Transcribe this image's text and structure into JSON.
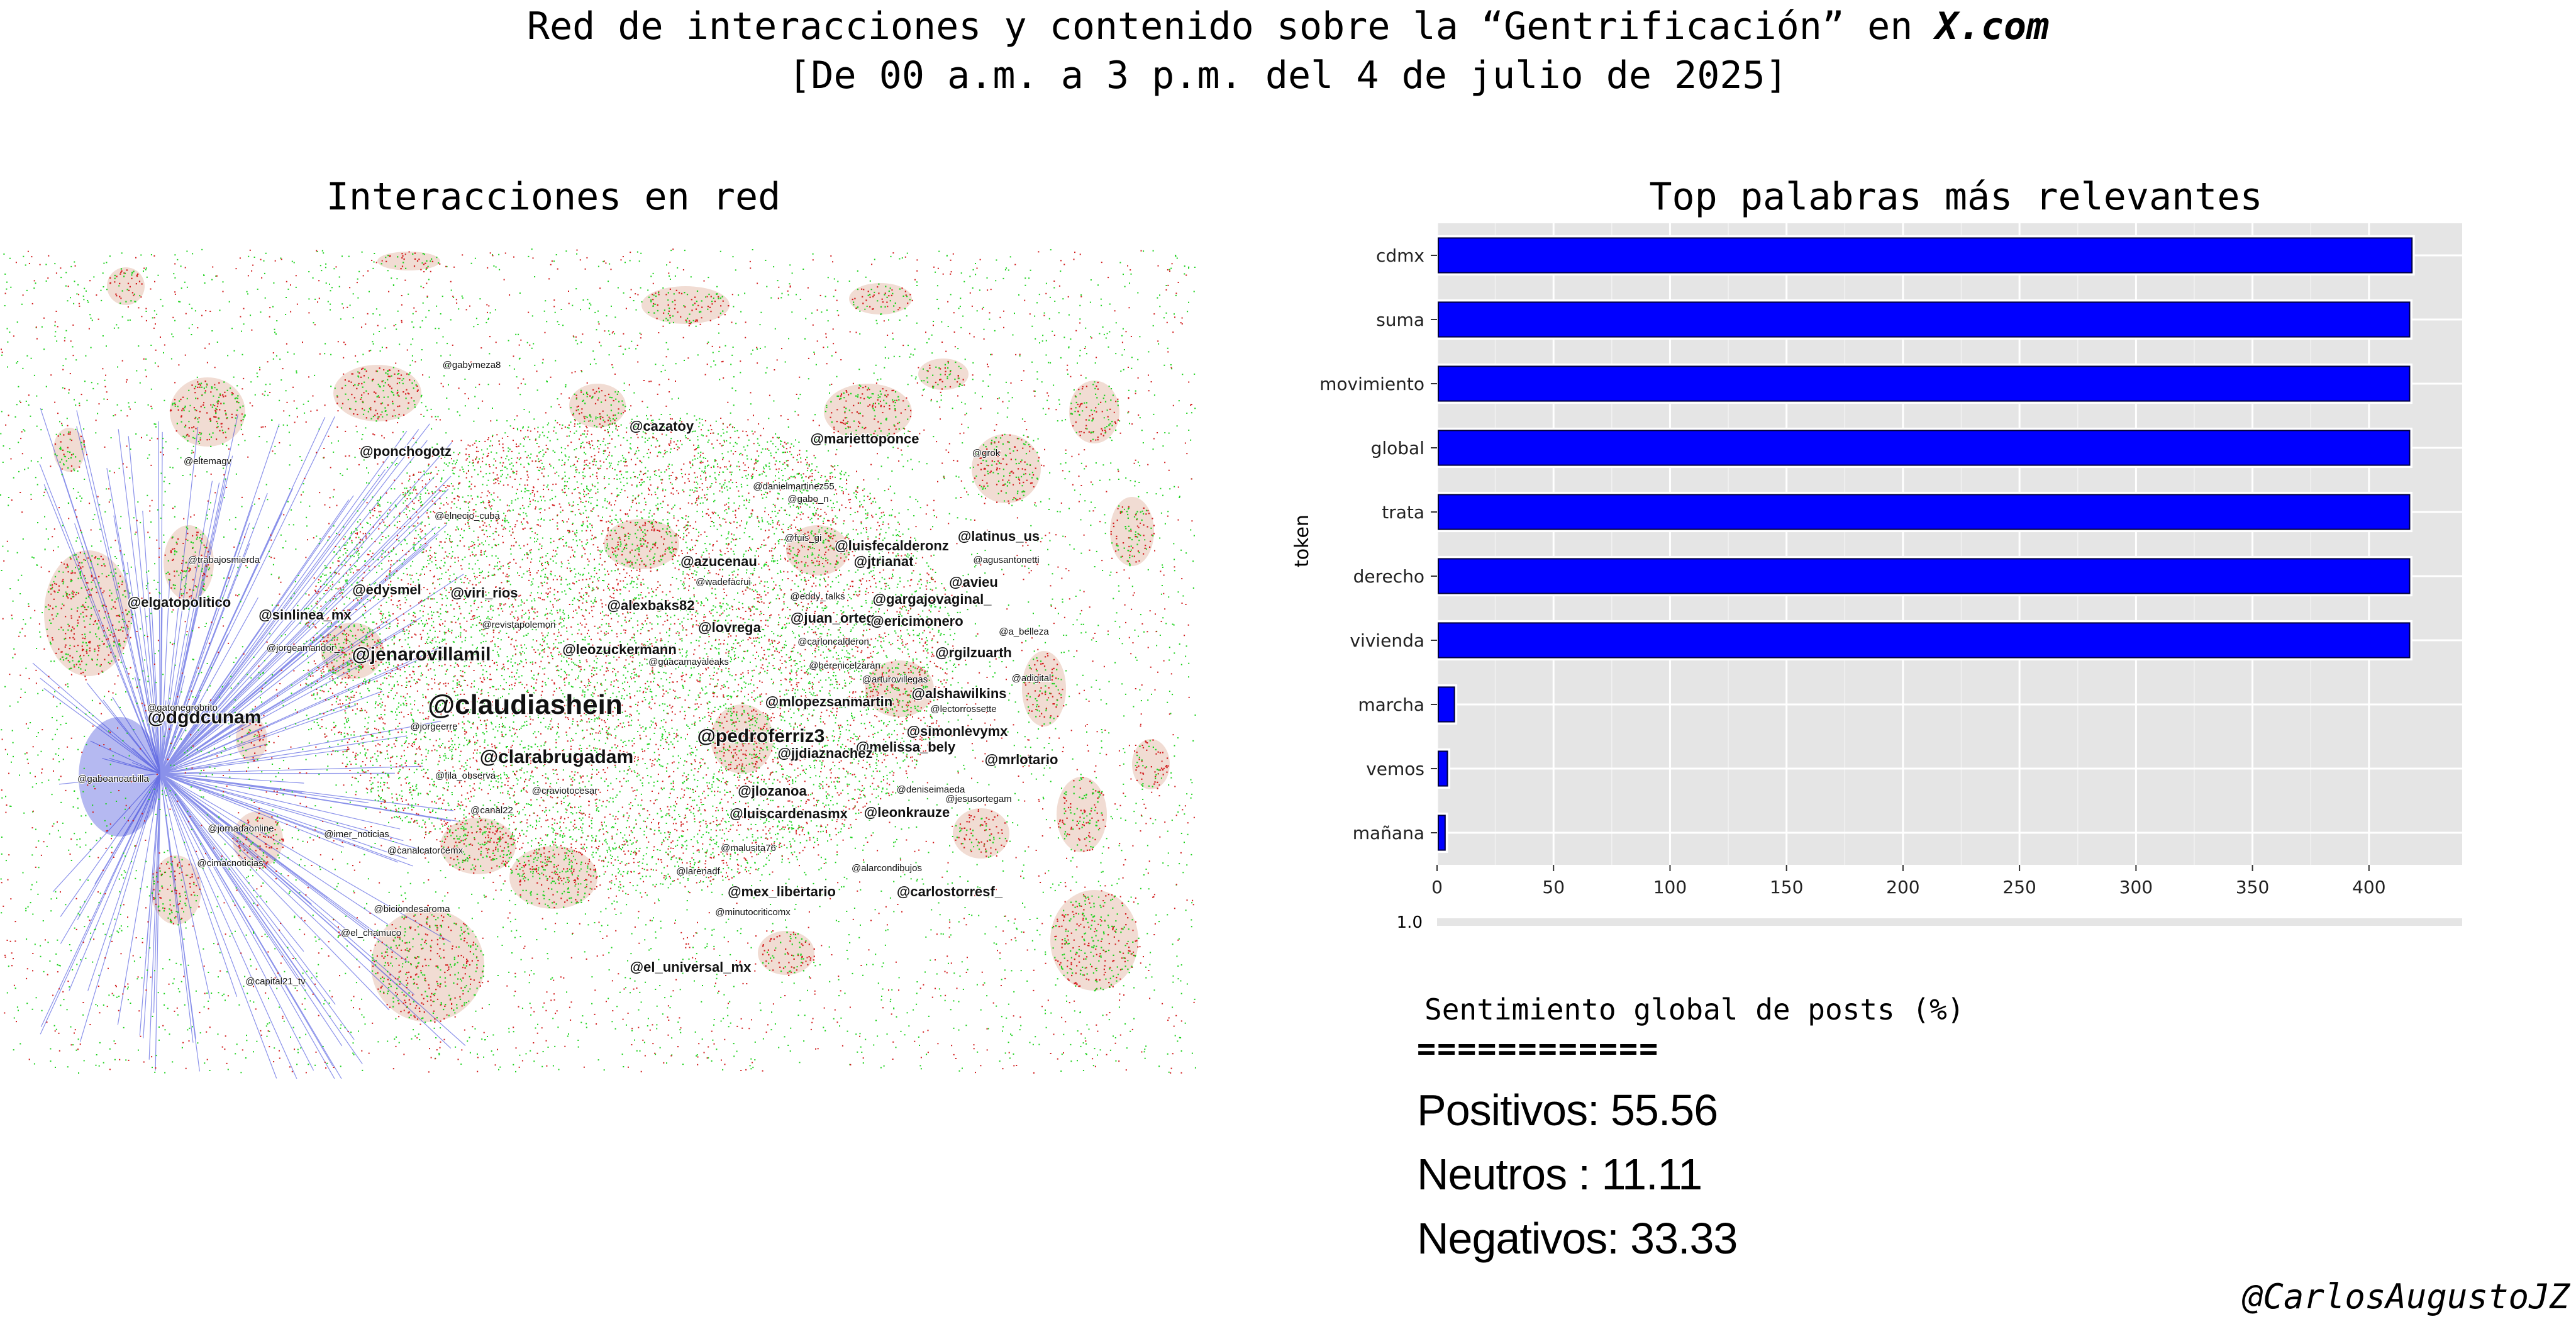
{
  "header": {
    "title_pre": "Red de interacciones y contenido sobre la “Gentrificación” en ",
    "title_em": "X.com",
    "subtitle": "[De 00 a.m. a 3 p.m. del 4 de julio de 2025]"
  },
  "network": {
    "panel_title": "Interacciones en red",
    "node_colors": {
      "positive": "#1bd11b",
      "negative": "#d11b1b",
      "edges": "#2a36d8",
      "cluster_fill": "#f1dcd3"
    },
    "labels": [
      {
        "text": "@claudiashein",
        "size": "xl"
      },
      {
        "text": "@pedroferriz3",
        "size": "l"
      },
      {
        "text": "@clarabrugadam",
        "size": "l"
      },
      {
        "text": "@jenarovillamil",
        "size": "l"
      },
      {
        "text": "@dgdcunam",
        "size": "l"
      },
      {
        "text": "@elgatopolitico",
        "size": "m"
      },
      {
        "text": "@sinlinea_mx",
        "size": "m"
      },
      {
        "text": "@edysmel",
        "size": "m"
      },
      {
        "text": "@viri_rios",
        "size": "m"
      },
      {
        "text": "@alexbaks82",
        "size": "m"
      },
      {
        "text": "@azucenau",
        "size": "m"
      },
      {
        "text": "@lovrega",
        "size": "m"
      },
      {
        "text": "@leozuckermann",
        "size": "m"
      },
      {
        "text": "@cazatoy",
        "size": "m"
      },
      {
        "text": "@mariettoponce",
        "size": "m"
      },
      {
        "text": "@ponchogotz",
        "size": "m"
      },
      {
        "text": "@latinus_us",
        "size": "m"
      },
      {
        "text": "@agusantonetti",
        "size": "s"
      },
      {
        "text": "@luisfecalderonz",
        "size": "m"
      },
      {
        "text": "@jtrianat",
        "size": "m"
      },
      {
        "text": "@avieu",
        "size": "m"
      },
      {
        "text": "@gargajovaginal_",
        "size": "m"
      },
      {
        "text": "@juan_ortega",
        "size": "m"
      },
      {
        "text": "@ericimonero",
        "size": "m"
      },
      {
        "text": "@rgilzuarth",
        "size": "m"
      },
      {
        "text": "@alshawilkins",
        "size": "m"
      },
      {
        "text": "@simonlevymx",
        "size": "m"
      },
      {
        "text": "@mlopezsanmartin",
        "size": "m"
      },
      {
        "text": "@melissa_bely",
        "size": "m"
      },
      {
        "text": "@jjdiaznachez",
        "size": "m"
      },
      {
        "text": "@mrlotario",
        "size": "m"
      },
      {
        "text": "@jlozanoa",
        "size": "m"
      },
      {
        "text": "@luiscardenasmx",
        "size": "m"
      },
      {
        "text": "@leonkrauze",
        "size": "m"
      },
      {
        "text": "@mex_libertario",
        "size": "m"
      },
      {
        "text": "@carlostorresf_",
        "size": "m"
      },
      {
        "text": "@el_universal_mx",
        "size": "m"
      },
      {
        "text": "@biciondesaroma",
        "size": "s"
      },
      {
        "text": "@capital21_tv",
        "size": "s"
      },
      {
        "text": "@canal22",
        "size": "s"
      },
      {
        "text": "@canalcatorcemx",
        "size": "s"
      },
      {
        "text": "@imer_noticias",
        "size": "s"
      },
      {
        "text": "@cimacnoticias",
        "size": "s"
      },
      {
        "text": "@jornadaonline",
        "size": "s"
      },
      {
        "text": "@revistapolemon",
        "size": "s"
      },
      {
        "text": "@jorgeamandor_",
        "size": "s"
      },
      {
        "text": "@elnecio_cuba",
        "size": "s"
      },
      {
        "text": "@eltemagv",
        "size": "s"
      },
      {
        "text": "@trabajosmierda",
        "size": "s"
      },
      {
        "text": "@gaboanoarbilla",
        "size": "s"
      },
      {
        "text": "@craviotocesar",
        "size": "s"
      },
      {
        "text": "@jorgeerre",
        "size": "s"
      },
      {
        "text": "@gatonegrobrito",
        "size": "s"
      },
      {
        "text": "@fila_observa",
        "size": "s"
      },
      {
        "text": "@minutocriticomx",
        "size": "s"
      },
      {
        "text": "@alarcondibujos",
        "size": "s"
      },
      {
        "text": "@deniseimaeda",
        "size": "s"
      },
      {
        "text": "@jesusortegam",
        "size": "s"
      },
      {
        "text": "@lectorrossette",
        "size": "s"
      },
      {
        "text": "@malusita76",
        "size": "s"
      },
      {
        "text": "@danielmartinez55",
        "size": "s"
      },
      {
        "text": "@gabo_n",
        "size": "s"
      },
      {
        "text": "@grok",
        "size": "s"
      },
      {
        "text": "@a_belleza",
        "size": "s"
      },
      {
        "text": "@eddy_talks",
        "size": "s"
      },
      {
        "text": "@arturovillegas",
        "size": "s"
      },
      {
        "text": "@carloncalderon",
        "size": "s"
      },
      {
        "text": "@guacamayaleaks",
        "size": "s"
      },
      {
        "text": "@berenicelzaran",
        "size": "s"
      },
      {
        "text": "@larenadf",
        "size": "s"
      },
      {
        "text": "@adigital",
        "size": "s"
      },
      {
        "text": "@el_chamuco",
        "size": "s"
      },
      {
        "text": "@gabymeza8",
        "size": "s"
      },
      {
        "text": "@fuis_gi",
        "size": "s"
      },
      {
        "text": "@wadefacrui",
        "size": "s"
      }
    ]
  },
  "chart_data": {
    "type": "bar",
    "orientation": "horizontal",
    "title": "Top palabras más relevantes",
    "xlabel": "",
    "ylabel": "token",
    "categories": [
      "cdmx",
      "suma",
      "movimiento",
      "global",
      "trata",
      "derecho",
      "vivienda",
      "marcha",
      "vemos",
      "mañana"
    ],
    "values": [
      419,
      418,
      418,
      418,
      418,
      418,
      418,
      8,
      5,
      4
    ],
    "xlim": [
      0,
      440
    ],
    "xticks": [
      "0",
      "50",
      "100",
      "150",
      "200",
      "250",
      "300",
      "350",
      "400"
    ],
    "secondary_tick": "1.0",
    "grid": true,
    "bar_color": "#0000ff",
    "bar_edge": "#000040",
    "plot_background": "#e5e5e5"
  },
  "sentiment": {
    "heading": "Sentimiento global de posts (%)",
    "rule": "============",
    "lines": [
      "Positivos: 55.56",
      "Neutros : 11.11",
      "Negativos: 33.33"
    ]
  },
  "signature": "@CarlosAugustoJZ"
}
